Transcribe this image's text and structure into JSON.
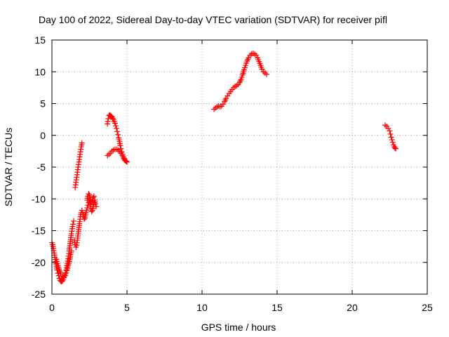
{
  "chart_data": {
    "type": "scatter",
    "title": "Day 100 of 2022, Sidereal Day-to-day VTEC variation (SDTVAR) for receiver pifl",
    "xlabel": "GPS time / hours",
    "ylabel": "SDTVAR / TECUs",
    "xlim": [
      0,
      25
    ],
    "ylim": [
      -25,
      15
    ],
    "xticks": [
      "0",
      "5",
      "10",
      "15",
      "20",
      "25"
    ],
    "yticks": [
      "-25",
      "-20",
      "-15",
      "-10",
      "-5",
      "0",
      "5",
      "10",
      "15"
    ],
    "grid": true,
    "marker": "+",
    "color": "#ff0000",
    "segments": [
      [
        [
          0.0,
          -16.9
        ],
        [
          0.05,
          -17.2
        ],
        [
          0.1,
          -17.8
        ],
        [
          0.15,
          -18.5
        ],
        [
          0.2,
          -19.2
        ],
        [
          0.25,
          -19.9
        ],
        [
          0.3,
          -20.6
        ],
        [
          0.35,
          -21.2
        ],
        [
          0.4,
          -21.7
        ],
        [
          0.45,
          -22.1
        ],
        [
          0.5,
          -22.5
        ],
        [
          0.55,
          -22.8
        ],
        [
          0.6,
          -23.0
        ],
        [
          0.65,
          -23.0
        ],
        [
          0.7,
          -22.9
        ],
        [
          0.75,
          -22.7
        ],
        [
          0.8,
          -22.4
        ],
        [
          0.85,
          -22.1
        ],
        [
          0.9,
          -21.7
        ],
        [
          0.95,
          -21.2
        ],
        [
          1.0,
          -20.5
        ],
        [
          1.05,
          -19.8
        ],
        [
          1.1,
          -19.0
        ],
        [
          1.15,
          -18.2
        ],
        [
          1.2,
          -17.3
        ],
        [
          1.25,
          -16.4
        ],
        [
          1.3,
          -15.5
        ],
        [
          1.35,
          -14.7
        ],
        [
          1.4,
          -14.0
        ],
        [
          1.45,
          -13.5
        ]
      ],
      [
        [
          0.3,
          -19.5
        ],
        [
          0.4,
          -20.5
        ],
        [
          0.5,
          -21.3
        ],
        [
          0.6,
          -21.8
        ],
        [
          0.7,
          -22.2
        ],
        [
          0.8,
          -22.3
        ],
        [
          0.9,
          -22.0
        ],
        [
          1.0,
          -21.3
        ],
        [
          1.1,
          -20.4
        ],
        [
          1.2,
          -19.3
        ],
        [
          1.3,
          -18.2
        ]
      ],
      [
        [
          1.5,
          -16.5
        ],
        [
          1.55,
          -17.2
        ],
        [
          1.6,
          -17.6
        ],
        [
          1.65,
          -17.3
        ],
        [
          1.7,
          -16.5
        ],
        [
          1.75,
          -15.5
        ],
        [
          1.8,
          -14.5
        ],
        [
          1.85,
          -13.6
        ],
        [
          1.9,
          -12.8
        ],
        [
          1.95,
          -12.2
        ],
        [
          2.0,
          -11.8
        ],
        [
          2.05,
          -12.2
        ],
        [
          2.1,
          -12.8
        ],
        [
          2.15,
          -13.2
        ],
        [
          2.2,
          -13.0
        ],
        [
          2.25,
          -12.4
        ],
        [
          2.3,
          -11.8
        ],
        [
          2.35,
          -11.4
        ],
        [
          2.4,
          -11.0
        ],
        [
          2.45,
          -10.6
        ],
        [
          2.5,
          -10.2
        ],
        [
          2.55,
          -10.8
        ],
        [
          2.6,
          -11.6
        ],
        [
          2.65,
          -12.0
        ],
        [
          2.7,
          -11.8
        ],
        [
          2.75,
          -11.2
        ],
        [
          2.8,
          -10.6
        ],
        [
          2.85,
          -10.2
        ],
        [
          2.9,
          -10.8
        ],
        [
          2.95,
          -11.2
        ]
      ],
      [
        [
          2.35,
          -10.2
        ],
        [
          2.4,
          -9.6
        ],
        [
          2.45,
          -9.2
        ],
        [
          2.5,
          -9.4
        ],
        [
          2.55,
          -9.8
        ],
        [
          2.6,
          -10.4
        ],
        [
          2.65,
          -10.6
        ],
        [
          2.7,
          -10.2
        ],
        [
          2.75,
          -9.8
        ],
        [
          2.8,
          -9.6
        ]
      ],
      [
        [
          1.55,
          -8.2
        ],
        [
          1.6,
          -7.4
        ],
        [
          1.65,
          -6.6
        ],
        [
          1.7,
          -5.8
        ],
        [
          1.75,
          -5.0
        ],
        [
          1.8,
          -4.2
        ],
        [
          1.85,
          -3.4
        ],
        [
          1.9,
          -2.6
        ],
        [
          1.95,
          -1.8
        ],
        [
          2.0,
          -1.2
        ]
      ],
      [
        [
          3.7,
          1.8
        ],
        [
          3.75,
          2.6
        ],
        [
          3.8,
          3.1
        ],
        [
          3.85,
          3.2
        ],
        [
          3.9,
          3.1
        ],
        [
          3.95,
          3.0
        ],
        [
          4.0,
          2.9
        ],
        [
          4.05,
          2.7
        ],
        [
          4.1,
          2.5
        ],
        [
          4.15,
          2.2
        ],
        [
          4.2,
          1.9
        ],
        [
          4.25,
          1.5
        ],
        [
          4.3,
          1.1
        ],
        [
          4.35,
          0.6
        ],
        [
          4.4,
          0.1
        ],
        [
          4.45,
          -0.4
        ],
        [
          4.5,
          -1.0
        ],
        [
          4.55,
          -1.6
        ],
        [
          4.6,
          -2.1
        ],
        [
          4.65,
          -2.6
        ],
        [
          4.7,
          -3.0
        ],
        [
          4.75,
          -3.4
        ],
        [
          4.8,
          -3.7
        ],
        [
          4.85,
          -3.9
        ],
        [
          4.9,
          -4.0
        ],
        [
          4.95,
          -4.1
        ],
        [
          5.0,
          -4.2
        ]
      ],
      [
        [
          3.7,
          -3.2
        ],
        [
          3.8,
          -3.0
        ],
        [
          3.9,
          -2.8
        ],
        [
          4.0,
          -2.5
        ],
        [
          4.1,
          -2.3
        ],
        [
          4.2,
          -2.2
        ],
        [
          4.3,
          -2.2
        ],
        [
          4.4,
          -2.3
        ],
        [
          4.5,
          -2.5
        ],
        [
          4.6,
          -2.8
        ],
        [
          4.7,
          -3.2
        ],
        [
          4.8,
          -3.6
        ]
      ],
      [
        [
          10.8,
          4.1
        ],
        [
          10.9,
          4.3
        ],
        [
          11.0,
          4.5
        ],
        [
          11.1,
          4.6
        ],
        [
          11.2,
          4.5
        ],
        [
          11.3,
          4.6
        ],
        [
          11.4,
          4.9
        ],
        [
          11.5,
          5.3
        ],
        [
          11.6,
          5.8
        ],
        [
          11.7,
          6.2
        ],
        [
          11.8,
          6.6
        ],
        [
          11.9,
          6.9
        ],
        [
          12.0,
          7.2
        ],
        [
          12.1,
          7.5
        ],
        [
          12.2,
          7.7
        ],
        [
          12.3,
          7.8
        ],
        [
          12.4,
          8.0
        ],
        [
          12.5,
          8.3
        ],
        [
          12.6,
          8.8
        ],
        [
          12.7,
          9.5
        ],
        [
          12.8,
          10.3
        ],
        [
          12.9,
          11.0
        ],
        [
          13.0,
          11.7
        ],
        [
          13.1,
          12.2
        ],
        [
          13.2,
          12.6
        ],
        [
          13.3,
          12.8
        ],
        [
          13.4,
          12.9
        ],
        [
          13.5,
          12.8
        ],
        [
          13.6,
          12.6
        ],
        [
          13.7,
          12.2
        ],
        [
          13.8,
          11.6
        ],
        [
          13.9,
          11.0
        ],
        [
          14.0,
          10.4
        ],
        [
          14.1,
          10.0
        ],
        [
          14.2,
          9.8
        ],
        [
          14.3,
          9.6
        ]
      ],
      [
        [
          22.2,
          1.6
        ],
        [
          22.3,
          1.4
        ],
        [
          22.4,
          1.1
        ],
        [
          22.5,
          0.7
        ],
        [
          22.55,
          0.2
        ],
        [
          22.6,
          -0.3
        ],
        [
          22.65,
          -0.7
        ],
        [
          22.7,
          -1.1
        ],
        [
          22.75,
          -1.5
        ],
        [
          22.8,
          -1.8
        ],
        [
          22.85,
          -2.0
        ],
        [
          22.9,
          -2.1
        ]
      ]
    ]
  }
}
